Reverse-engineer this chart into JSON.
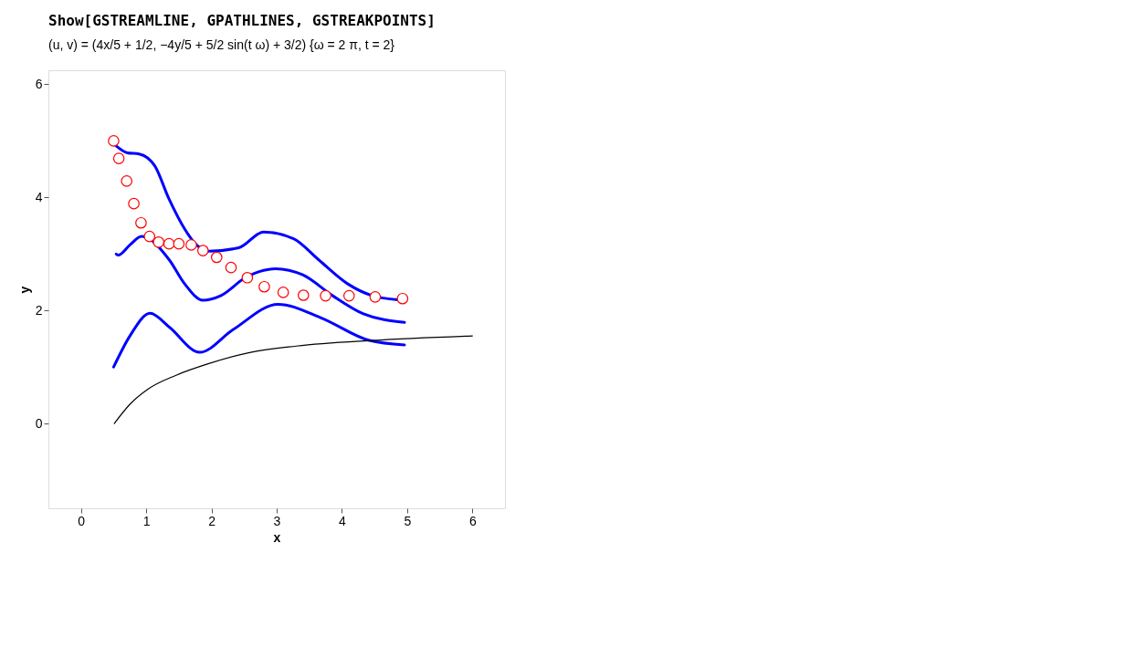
{
  "chart_data": {
    "type": "line",
    "title": "Show[GSTREAMLINE, GPATHLINES, GSTREAKPOINTS]",
    "subtitle": "(u, v) = (4x/5 + 1/2, −4y/5 + 5/2 sin(t ω) + 3/2) {ω = 2 π, t = 2}",
    "xlabel": "x",
    "ylabel": "y",
    "xlim": [
      -0.5,
      6.5
    ],
    "ylim": [
      -1.5,
      6.25
    ],
    "xticks": [
      0,
      1,
      2,
      3,
      4,
      5,
      6
    ],
    "yticks": [
      0,
      2,
      4,
      6
    ],
    "grid": false,
    "line_style": "solid",
    "series": [
      {
        "color": "#0000ff",
        "x": [
          0.53,
          0.71,
          0.89,
          1.13,
          1.35,
          1.59,
          1.77,
          1.96,
          2.42,
          2.8,
          3.26,
          3.64,
          4.09,
          4.47,
          4.86
        ],
        "values": [
          4.92,
          4.79,
          4.77,
          4.56,
          3.97,
          3.44,
          3.16,
          3.05,
          3.11,
          3.39,
          3.27,
          2.9,
          2.47,
          2.26,
          2.19
        ]
      },
      {
        "color": "#0000ff",
        "x": [
          0.54,
          0.57,
          0.75,
          0.93,
          1.35,
          1.59,
          1.87,
          2.14,
          2.52,
          2.8,
          2.98,
          3.4,
          3.86,
          4.33,
          4.96
        ],
        "values": [
          3.0,
          2.98,
          3.16,
          3.31,
          2.9,
          2.47,
          2.18,
          2.26,
          2.58,
          2.71,
          2.74,
          2.63,
          2.26,
          1.94,
          1.79
        ]
      },
      {
        "color": "#0000ff",
        "x": [
          0.5,
          0.75,
          1.06,
          1.35,
          1.82,
          2.33,
          3.02,
          3.68,
          4.42,
          4.96
        ],
        "values": [
          1.0,
          1.55,
          1.95,
          1.71,
          1.26,
          1.66,
          2.11,
          1.87,
          1.47,
          1.39
        ]
      },
      {
        "color": "#000000",
        "x": [
          0.51,
          0.75,
          1.03,
          1.45,
          1.96,
          2.6,
          3.3,
          4.47,
          6.0
        ],
        "values": [
          0.0,
          0.34,
          0.61,
          0.85,
          1.06,
          1.26,
          1.37,
          1.47,
          1.55
        ]
      },
      {
        "type": "scatter",
        "color": "#ff0000",
        "marker": "circle",
        "x": [
          0.5,
          0.58,
          0.7,
          0.81,
          0.92,
          1.05,
          1.19,
          1.35,
          1.5,
          1.69,
          1.87,
          2.08,
          2.3,
          2.55,
          2.81,
          3.1,
          3.41,
          3.75,
          4.11,
          4.51,
          4.93
        ],
        "values": [
          5.0,
          4.69,
          4.29,
          3.89,
          3.55,
          3.31,
          3.21,
          3.18,
          3.18,
          3.16,
          3.06,
          2.94,
          2.76,
          2.58,
          2.42,
          2.32,
          2.27,
          2.26,
          2.26,
          2.24,
          2.21
        ]
      }
    ]
  }
}
